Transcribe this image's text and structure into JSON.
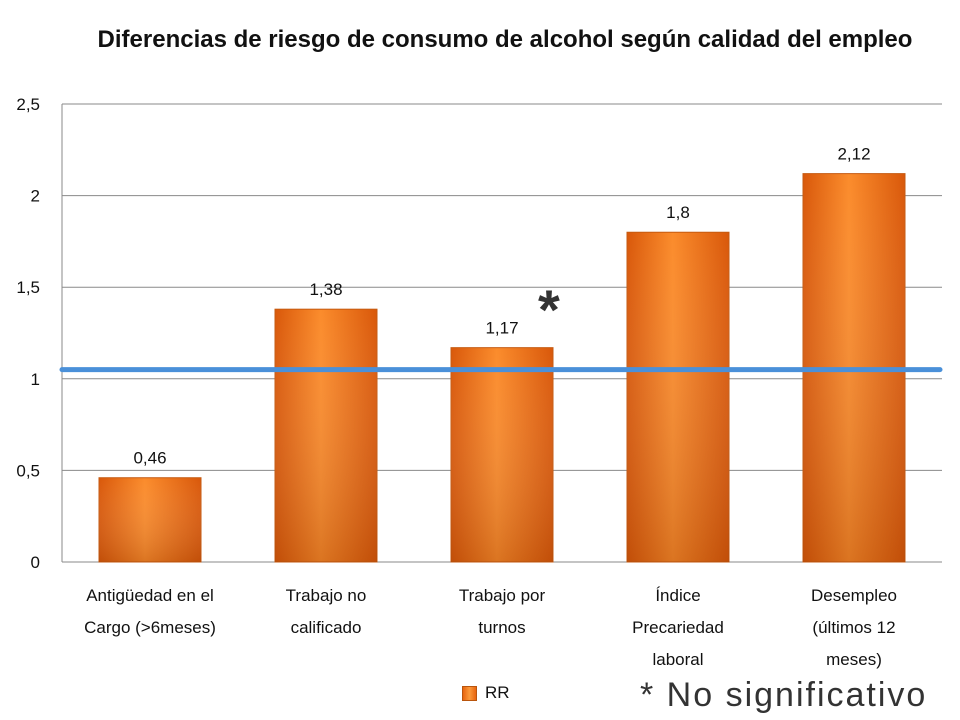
{
  "chart_data": {
    "type": "bar",
    "title": "Diferencias de riesgo de consumo de alcohol según calidad del empleo",
    "categories": [
      [
        "Antigüedad en el",
        "Cargo (>6meses)"
      ],
      [
        "Trabajo no",
        "calificado"
      ],
      [
        "Trabajo por",
        "turnos"
      ],
      [
        "Índice",
        "Precariedad",
        "laboral"
      ],
      [
        "Desempleo",
        "(últimos 12",
        "meses)"
      ]
    ],
    "series": [
      {
        "name": "RR",
        "values": [
          0.46,
          1.38,
          1.17,
          1.8,
          2.12
        ],
        "labels": [
          "0,46",
          "1,38",
          "1,17",
          "1,8",
          "2,12"
        ],
        "color": "#f47a1f"
      }
    ],
    "reference_line": {
      "y": 1.05,
      "color": "#4a90d9"
    },
    "ylim": [
      0,
      2.5
    ],
    "yticks": [
      0,
      0.5,
      1,
      1.5,
      2,
      2.5
    ],
    "ytick_labels": [
      "0",
      "0,5",
      "1",
      "1,5",
      "2",
      "2,5"
    ],
    "grid": true,
    "legend": "bottom",
    "annotation": "*",
    "note": "* No significativo"
  }
}
